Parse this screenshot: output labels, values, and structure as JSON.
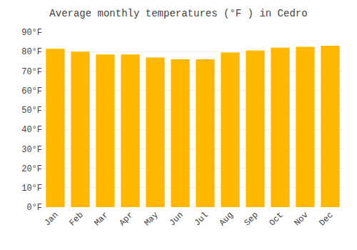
{
  "chart_data": {
    "type": "bar",
    "title": "Average monthly temperatures (°F ) in Cedro",
    "categories": [
      "Jan",
      "Feb",
      "Mar",
      "Apr",
      "May",
      "Jun",
      "Jul",
      "Aug",
      "Sep",
      "Oct",
      "Nov",
      "Dec"
    ],
    "values": [
      81.5,
      80.0,
      78.5,
      78.5,
      77.0,
      76.0,
      76.0,
      79.5,
      80.5,
      82.0,
      82.5,
      83.0
    ],
    "color": "#FFB800",
    "ylim": [
      0,
      90
    ],
    "yticks": [
      {
        "value": 0,
        "label": "0°F"
      },
      {
        "value": 10,
        "label": "10°F"
      },
      {
        "value": 20,
        "label": "20°F"
      },
      {
        "value": 30,
        "label": "30°F"
      },
      {
        "value": 40,
        "label": "40°F"
      },
      {
        "value": 50,
        "label": "50°F"
      },
      {
        "value": 60,
        "label": "60°F"
      },
      {
        "value": 70,
        "label": "70°F"
      },
      {
        "value": 80,
        "label": "80°F"
      },
      {
        "value": 90,
        "label": "90°F"
      }
    ],
    "grid": true
  }
}
